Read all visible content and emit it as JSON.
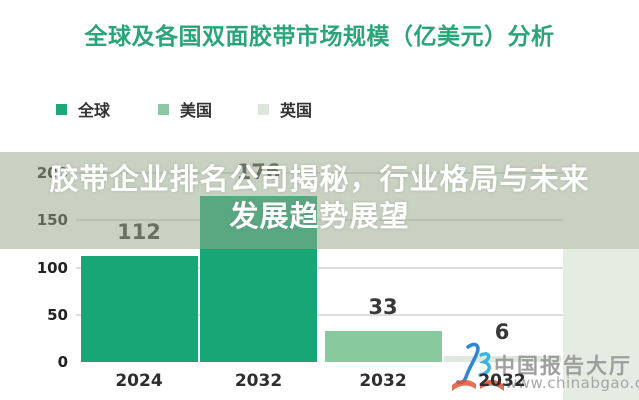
{
  "title": "全球及各国双面胶带市场规模（亿美元）分析",
  "legend": {
    "items": [
      {
        "label": "全球",
        "color": "#1ea878"
      },
      {
        "label": "美国",
        "color": "#8cc9a2"
      },
      {
        "label": "英国",
        "color": "#dfe7dc"
      }
    ]
  },
  "overlay_banner": {
    "line1": "胶带企业排名公司揭秘，行业格局与未来",
    "line2": "发展趋势展望",
    "background": "rgba(151,169,138,0.52)",
    "text_color": "#ffffff"
  },
  "chart_data": {
    "type": "bar",
    "title": "全球及各国双面胶带市场规模（亿美元）分析",
    "categories": [
      "2024",
      "2032",
      "2032",
      "2032"
    ],
    "bars": [
      {
        "category": "2024",
        "series": "全球",
        "value": 112,
        "color": "#17a777"
      },
      {
        "category": "2032",
        "series": "全球",
        "value": 176,
        "color": "#17a777"
      },
      {
        "category": "2032",
        "series": "美国",
        "value": 33,
        "color": "#88c99d"
      },
      {
        "category": "2032",
        "series": "英国",
        "value": 6,
        "color": "#dfe8de"
      }
    ],
    "ylabel": "",
    "xlabel": "",
    "ylim": [
      0,
      200
    ],
    "yticks": [
      0,
      50,
      100,
      150,
      200
    ],
    "grid": true,
    "legend_position": "top-left",
    "value_labels": true
  },
  "watermark": {
    "brand": "中国报告大厅",
    "site": "www.chinabgao.com",
    "logo": "chinabgao-logo",
    "logo_colors": {
      "blue": "#2f86d6",
      "cyan": "#38b4e2",
      "book_red": "#e0563a"
    }
  },
  "colors": {
    "title_green": "#2aa578",
    "axis_text": "#222222",
    "gridline": "#dedede",
    "side_panel": "#e5ece2"
  }
}
